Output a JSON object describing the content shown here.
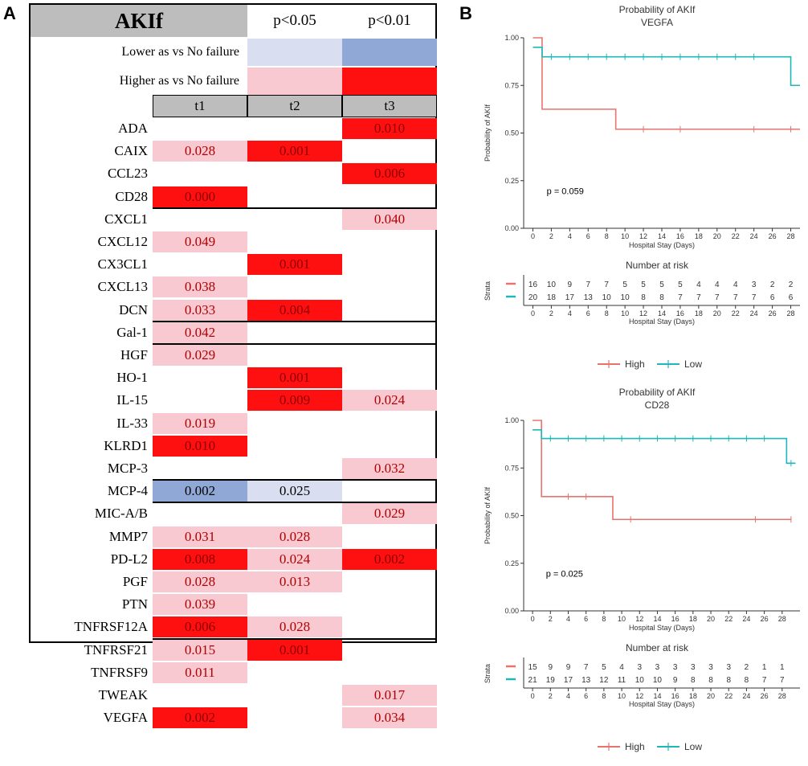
{
  "panel_labels": {
    "a": "A",
    "b": "B"
  },
  "table": {
    "title": "AKIf",
    "p_headers": [
      "p<0.05",
      "p<0.01"
    ],
    "legend": [
      {
        "label": "Lower as vs No failure",
        "colors": [
          "#d9dff0",
          "#8fa8d6"
        ]
      },
      {
        "label": "Higher as vs No failure",
        "colors": [
          "#f9c9d2",
          "#ff1010"
        ]
      }
    ],
    "columns": [
      "t1",
      "t2",
      "t3"
    ],
    "rows": [
      {
        "gene": "ADA",
        "cells": [
          "",
          "",
          "0.010"
        ],
        "fills": [
          "",
          "",
          "hi_strong"
        ]
      },
      {
        "gene": "CAIX",
        "cells": [
          "0.028",
          "0.001",
          ""
        ],
        "fills": [
          "hi_weak",
          "hi_strong",
          ""
        ]
      },
      {
        "gene": "CCL23",
        "cells": [
          "",
          "",
          "0.006"
        ],
        "fills": [
          "",
          "",
          "hi_strong"
        ]
      },
      {
        "gene": "CD28",
        "cells": [
          "0.000",
          "",
          ""
        ],
        "fills": [
          "hi_strong",
          "",
          ""
        ]
      },
      {
        "gene": "CXCL1",
        "cells": [
          "",
          "",
          "0.040"
        ],
        "fills": [
          "",
          "",
          "hi_weak"
        ]
      },
      {
        "gene": "CXCL12",
        "cells": [
          "0.049",
          "",
          ""
        ],
        "fills": [
          "hi_weak",
          "",
          ""
        ]
      },
      {
        "gene": "CX3CL1",
        "cells": [
          "",
          "0.001",
          ""
        ],
        "fills": [
          "",
          "hi_strong",
          ""
        ]
      },
      {
        "gene": "CXCL13",
        "cells": [
          "0.038",
          "",
          ""
        ],
        "fills": [
          "hi_weak",
          "",
          ""
        ]
      },
      {
        "gene": "DCN",
        "cells": [
          "0.033",
          "0.004",
          ""
        ],
        "fills": [
          "hi_weak",
          "hi_strong",
          ""
        ]
      },
      {
        "gene": "Gal-1",
        "cells": [
          "0.042",
          "",
          ""
        ],
        "fills": [
          "hi_weak",
          "",
          ""
        ]
      },
      {
        "gene": "HGF",
        "cells": [
          "0.029",
          "",
          ""
        ],
        "fills": [
          "hi_weak",
          "",
          ""
        ]
      },
      {
        "gene": "HO-1",
        "cells": [
          "",
          "0.001",
          ""
        ],
        "fills": [
          "",
          "hi_strong",
          ""
        ]
      },
      {
        "gene": "IL-15",
        "cells": [
          "",
          "0.009",
          "0.024"
        ],
        "fills": [
          "",
          "hi_strong",
          "hi_weak"
        ]
      },
      {
        "gene": "IL-33",
        "cells": [
          "0.019",
          "",
          ""
        ],
        "fills": [
          "hi_weak",
          "",
          ""
        ]
      },
      {
        "gene": "KLRD1",
        "cells": [
          "0.010",
          "",
          ""
        ],
        "fills": [
          "hi_strong",
          "",
          ""
        ]
      },
      {
        "gene": "MCP-3",
        "cells": [
          "",
          "",
          "0.032"
        ],
        "fills": [
          "",
          "",
          "hi_weak"
        ]
      },
      {
        "gene": "MCP-4",
        "cells": [
          "0.002",
          "0.025",
          ""
        ],
        "fills": [
          "lo_strong",
          "lo_weak",
          ""
        ]
      },
      {
        "gene": "MIC-A/B",
        "cells": [
          "",
          "",
          "0.029"
        ],
        "fills": [
          "",
          "",
          "hi_weak"
        ]
      },
      {
        "gene": "MMP7",
        "cells": [
          "0.031",
          "0.028",
          ""
        ],
        "fills": [
          "hi_weak",
          "hi_weak",
          ""
        ]
      },
      {
        "gene": "PD-L2",
        "cells": [
          "0.008",
          "0.024",
          "0.002"
        ],
        "fills": [
          "hi_strong",
          "hi_weak",
          "hi_strong"
        ]
      },
      {
        "gene": "PGF",
        "cells": [
          "0.028",
          "0.013",
          ""
        ],
        "fills": [
          "hi_weak",
          "hi_weak",
          ""
        ]
      },
      {
        "gene": "PTN",
        "cells": [
          "0.039",
          "",
          ""
        ],
        "fills": [
          "hi_weak",
          "",
          ""
        ]
      },
      {
        "gene": "TNFRSF12A",
        "cells": [
          "0.006",
          "0.028",
          ""
        ],
        "fills": [
          "hi_strong",
          "hi_weak",
          ""
        ]
      },
      {
        "gene": "TNFRSF21",
        "cells": [
          "0.015",
          "0.001",
          ""
        ],
        "fills": [
          "hi_weak",
          "hi_strong",
          ""
        ]
      },
      {
        "gene": "TNFRSF9",
        "cells": [
          "0.011",
          "",
          ""
        ],
        "fills": [
          "hi_weak",
          "",
          ""
        ]
      },
      {
        "gene": "TWEAK",
        "cells": [
          "",
          "",
          "0.017"
        ],
        "fills": [
          "",
          "",
          "hi_weak"
        ]
      },
      {
        "gene": "VEGFA",
        "cells": [
          "0.002",
          "",
          "0.034"
        ],
        "fills": [
          "hi_strong",
          "",
          "hi_weak"
        ]
      }
    ]
  },
  "colors": {
    "hi_strong": "#ff1010",
    "hi_weak": "#f9c9d2",
    "lo_strong": "#8fa8d6",
    "lo_weak": "#d9dff0",
    "grey": "#bdbdbd",
    "high_line": "#e8736c",
    "low_line": "#1fb8b8"
  },
  "chart_data": [
    {
      "type": "line",
      "title": "Probability of AKIf",
      "subtitle": "VEGFA",
      "xlabel": "Hospital Stay (Days)",
      "ylabel": "Probability of AKIf",
      "xlim": [
        -1,
        29
      ],
      "ylim": [
        0,
        1
      ],
      "xticks": [
        0,
        2,
        4,
        6,
        8,
        10,
        12,
        14,
        16,
        18,
        20,
        22,
        24,
        26,
        28
      ],
      "yticks": [
        "0.00",
        "0.25",
        "0.50",
        "0.75",
        "1.00"
      ],
      "annotation": "p = 0.059",
      "series": [
        {
          "name": "High",
          "steps": [
            [
              0,
              1.0
            ],
            [
              1,
              0.625
            ],
            [
              9,
              0.52
            ],
            [
              29,
              0.52
            ]
          ],
          "censors": [
            12,
            16,
            24,
            28
          ]
        },
        {
          "name": "Low",
          "steps": [
            [
              0,
              0.95
            ],
            [
              1,
              0.9
            ],
            [
              28,
              0.75
            ],
            [
              29,
              0.75
            ]
          ],
          "censors": [
            2,
            4,
            6,
            8,
            10,
            12,
            14,
            16,
            18,
            20,
            22,
            24
          ]
        }
      ],
      "risk_table": {
        "title": "Number at risk",
        "strata_label": "Strata",
        "xlabel": "Hospital Stay (Days)",
        "rows": [
          {
            "name": "High",
            "values": [
              "16",
              "10",
              "9",
              "7",
              "7",
              "5",
              "5",
              "5",
              "5",
              "4",
              "4",
              "4",
              "3",
              "2",
              "2"
            ]
          },
          {
            "name": "Low",
            "values": [
              "20",
              "18",
              "17",
              "13",
              "10",
              "10",
              "8",
              "8",
              "7",
              "7",
              "7",
              "7",
              "7",
              "6",
              "6"
            ]
          }
        ]
      },
      "legend": [
        "High",
        "Low"
      ]
    },
    {
      "type": "line",
      "title": "Probability of AKIf",
      "subtitle": "CD28",
      "xlabel": "Hospital Stay (Days)",
      "ylabel": "Probability of AKIf",
      "xlim": [
        -1,
        30
      ],
      "ylim": [
        0,
        1
      ],
      "xticks": [
        0,
        2,
        4,
        6,
        8,
        10,
        12,
        14,
        16,
        18,
        20,
        22,
        24,
        26,
        28
      ],
      "yticks": [
        "0.00",
        "0.25",
        "0.50",
        "0.75",
        "1.00"
      ],
      "annotation": "p = 0.025",
      "series": [
        {
          "name": "High",
          "steps": [
            [
              0,
              1.0
            ],
            [
              1,
              0.6
            ],
            [
              9,
              0.48
            ],
            [
              29,
              0.48
            ]
          ],
          "censors": [
            4,
            6,
            11,
            25,
            29
          ]
        },
        {
          "name": "Low",
          "steps": [
            [
              0,
              0.95
            ],
            [
              1,
              0.905
            ],
            [
              28.5,
              0.775
            ],
            [
              29.5,
              0.775
            ]
          ],
          "censors": [
            2,
            4,
            6,
            8,
            10,
            12,
            14,
            16,
            18,
            20,
            22,
            24,
            26,
            29
          ]
        }
      ],
      "risk_table": {
        "title": "Number at risk",
        "strata_label": "Strata",
        "xlabel": "Hospital Stay (Days)",
        "rows": [
          {
            "name": "High",
            "values": [
              "15",
              "9",
              "9",
              "7",
              "5",
              "4",
              "3",
              "3",
              "3",
              "3",
              "3",
              "3",
              "2",
              "1",
              "1"
            ]
          },
          {
            "name": "Low",
            "values": [
              "21",
              "19",
              "17",
              "13",
              "12",
              "11",
              "10",
              "10",
              "9",
              "8",
              "8",
              "8",
              "8",
              "7",
              "7"
            ]
          }
        ]
      },
      "legend": [
        "High",
        "Low"
      ]
    }
  ]
}
